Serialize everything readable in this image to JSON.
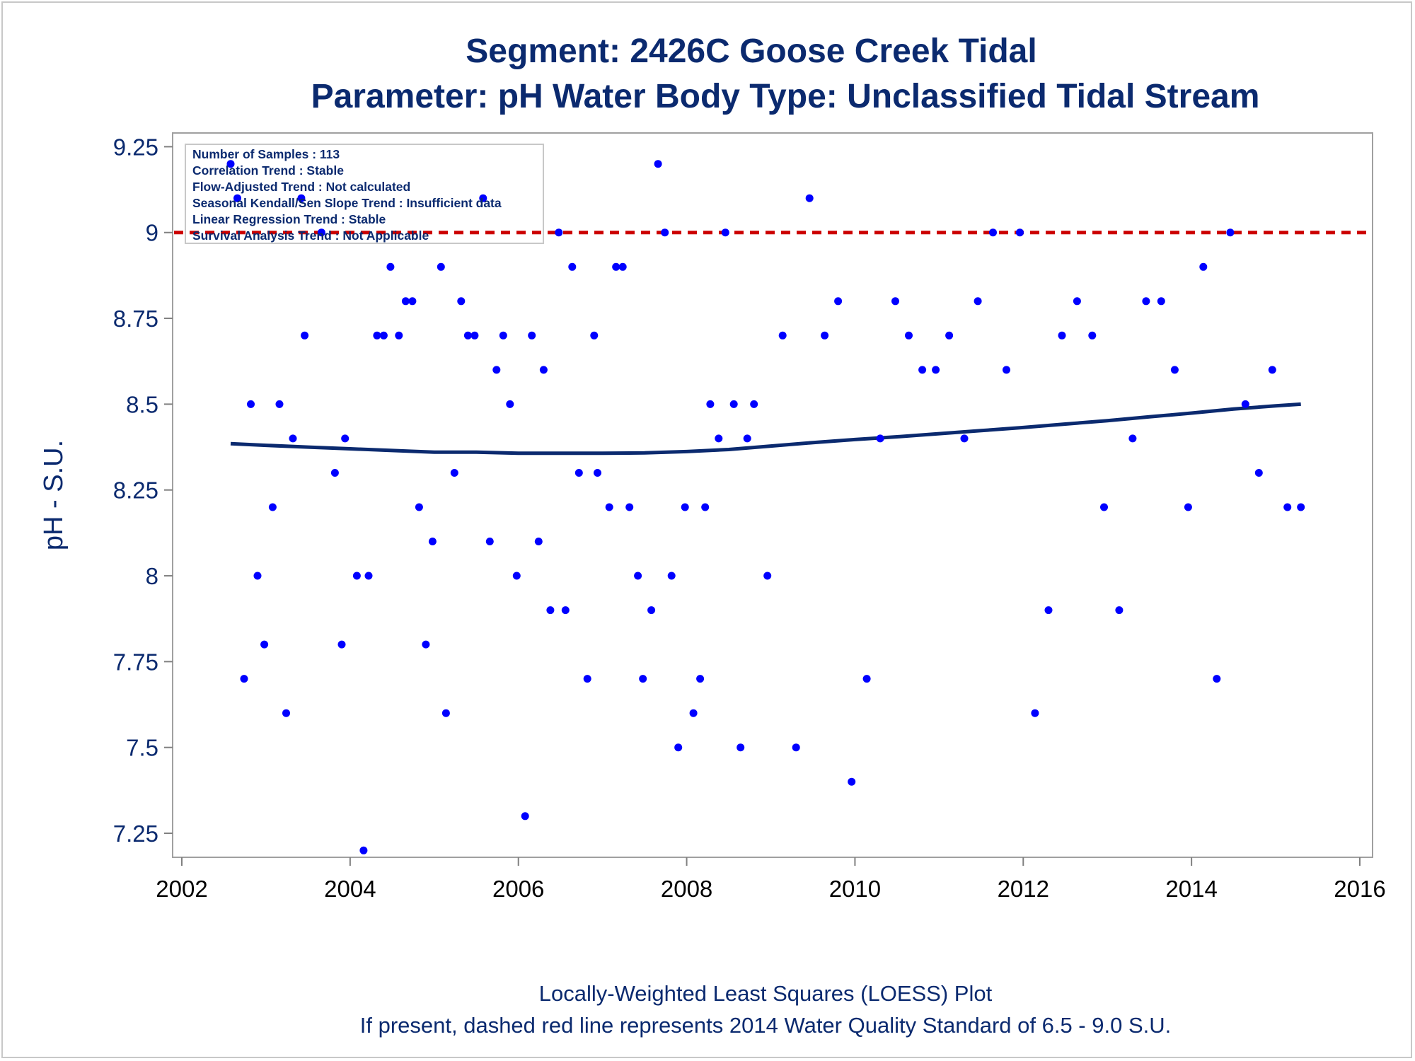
{
  "chart_data": {
    "type": "scatter",
    "title": "Segment: 2426C  Goose Creek Tidal",
    "subtitle": "Parameter: pH   Water Body Type: Unclassified Tidal Stream",
    "ylabel": "pH - S.U.",
    "xlabel": "",
    "xlim": [
      2002,
      2016
    ],
    "ylim": [
      7.18,
      9.29
    ],
    "xticks": [
      "2002",
      "2004",
      "2006",
      "2008",
      "2010",
      "2012",
      "2014",
      "2016"
    ],
    "yticks": [
      "7.25",
      "7.5",
      "7.75",
      "8",
      "8.25",
      "8.5",
      "8.75",
      "9",
      "9.25"
    ],
    "grid": false,
    "standard_line": 9.0,
    "footer": [
      "Locally-Weighted Least Squares (LOESS) Plot",
      "If present, dashed red line represents 2014 Water Quality Standard of 6.5 - 9.0 S.U."
    ],
    "stats_box": [
      "Number of Samples : 113",
      "Correlation Trend : Stable",
      "Flow-Adjusted Trend : Not calculated",
      "Seasonal Kendall/Sen Slope Trend : Insufficient data",
      "Linear Regression Trend : Stable",
      "Survival Analysis Trend : Not Applicable"
    ],
    "colors": {
      "points": "#0000ff",
      "loess": "#0b2a6f",
      "standard": "#cc0000",
      "text": "#0b2a6f"
    },
    "points": [
      [
        2002.58,
        9.2
      ],
      [
        2002.66,
        9.1
      ],
      [
        2002.74,
        7.7
      ],
      [
        2002.82,
        8.5
      ],
      [
        2002.9,
        8.0
      ],
      [
        2002.98,
        7.8
      ],
      [
        2003.08,
        8.2
      ],
      [
        2003.16,
        8.5
      ],
      [
        2003.24,
        7.6
      ],
      [
        2003.32,
        8.4
      ],
      [
        2003.42,
        9.1
      ],
      [
        2003.46,
        8.7
      ],
      [
        2003.66,
        9.0
      ],
      [
        2003.82,
        8.3
      ],
      [
        2003.9,
        7.8
      ],
      [
        2003.94,
        8.4
      ],
      [
        2004.08,
        8.0
      ],
      [
        2004.16,
        7.2
      ],
      [
        2004.22,
        8.0
      ],
      [
        2004.32,
        8.7
      ],
      [
        2004.4,
        8.7
      ],
      [
        2004.48,
        8.9
      ],
      [
        2004.58,
        8.7
      ],
      [
        2004.66,
        8.8
      ],
      [
        2004.74,
        8.8
      ],
      [
        2004.82,
        8.2
      ],
      [
        2004.9,
        7.8
      ],
      [
        2004.98,
        8.1
      ],
      [
        2005.08,
        8.9
      ],
      [
        2005.14,
        7.6
      ],
      [
        2005.24,
        8.3
      ],
      [
        2005.32,
        8.8
      ],
      [
        2005.4,
        8.7
      ],
      [
        2005.48,
        8.7
      ],
      [
        2005.58,
        9.1
      ],
      [
        2005.66,
        8.1
      ],
      [
        2005.74,
        8.6
      ],
      [
        2005.82,
        8.7
      ],
      [
        2005.9,
        8.5
      ],
      [
        2005.98,
        8.0
      ],
      [
        2006.08,
        7.3
      ],
      [
        2006.16,
        8.7
      ],
      [
        2006.24,
        8.1
      ],
      [
        2006.3,
        8.6
      ],
      [
        2006.38,
        7.9
      ],
      [
        2006.48,
        9.0
      ],
      [
        2006.56,
        7.9
      ],
      [
        2006.64,
        8.9
      ],
      [
        2006.72,
        8.3
      ],
      [
        2006.82,
        7.7
      ],
      [
        2006.9,
        8.7
      ],
      [
        2006.94,
        8.3
      ],
      [
        2007.08,
        8.2
      ],
      [
        2007.16,
        8.9
      ],
      [
        2007.24,
        8.9
      ],
      [
        2007.32,
        8.2
      ],
      [
        2007.42,
        8.0
      ],
      [
        2007.48,
        7.7
      ],
      [
        2007.58,
        7.9
      ],
      [
        2007.66,
        9.2
      ],
      [
        2007.74,
        9.0
      ],
      [
        2007.82,
        8.0
      ],
      [
        2007.9,
        7.5
      ],
      [
        2007.98,
        8.2
      ],
      [
        2008.08,
        7.6
      ],
      [
        2008.16,
        7.7
      ],
      [
        2008.22,
        8.2
      ],
      [
        2008.28,
        8.5
      ],
      [
        2008.38,
        8.4
      ],
      [
        2008.46,
        9.0
      ],
      [
        2008.56,
        8.5
      ],
      [
        2008.64,
        7.5
      ],
      [
        2008.72,
        8.4
      ],
      [
        2008.8,
        8.5
      ],
      [
        2008.96,
        8.0
      ],
      [
        2009.14,
        8.7
      ],
      [
        2009.3,
        7.5
      ],
      [
        2009.46,
        9.1
      ],
      [
        2009.64,
        8.7
      ],
      [
        2009.8,
        8.8
      ],
      [
        2009.96,
        7.4
      ],
      [
        2010.14,
        7.7
      ],
      [
        2010.3,
        8.4
      ],
      [
        2010.48,
        8.8
      ],
      [
        2010.64,
        8.7
      ],
      [
        2010.8,
        8.6
      ],
      [
        2010.96,
        8.6
      ],
      [
        2011.12,
        8.7
      ],
      [
        2011.3,
        8.4
      ],
      [
        2011.46,
        8.8
      ],
      [
        2011.64,
        9.0
      ],
      [
        2011.8,
        8.6
      ],
      [
        2011.96,
        9.0
      ],
      [
        2012.14,
        7.6
      ],
      [
        2012.3,
        7.9
      ],
      [
        2012.46,
        8.7
      ],
      [
        2012.64,
        8.8
      ],
      [
        2012.82,
        8.7
      ],
      [
        2012.96,
        8.2
      ],
      [
        2013.14,
        7.9
      ],
      [
        2013.3,
        8.4
      ],
      [
        2013.46,
        8.8
      ],
      [
        2013.64,
        8.8
      ],
      [
        2013.8,
        8.6
      ],
      [
        2013.96,
        8.2
      ],
      [
        2014.14,
        8.9
      ],
      [
        2014.3,
        7.7
      ],
      [
        2014.46,
        9.0
      ],
      [
        2014.64,
        8.5
      ],
      [
        2014.8,
        8.3
      ],
      [
        2014.96,
        8.6
      ],
      [
        2015.14,
        8.2
      ],
      [
        2015.3,
        8.2
      ]
    ],
    "loess": [
      [
        2002.58,
        8.385
      ],
      [
        2003.0,
        8.38
      ],
      [
        2003.5,
        8.375
      ],
      [
        2004.0,
        8.37
      ],
      [
        2004.5,
        8.365
      ],
      [
        2005.0,
        8.36
      ],
      [
        2005.5,
        8.36
      ],
      [
        2006.0,
        8.357
      ],
      [
        2006.5,
        8.357
      ],
      [
        2007.0,
        8.357
      ],
      [
        2007.5,
        8.358
      ],
      [
        2008.0,
        8.362
      ],
      [
        2008.5,
        8.368
      ],
      [
        2009.0,
        8.378
      ],
      [
        2009.5,
        8.388
      ],
      [
        2010.0,
        8.397
      ],
      [
        2010.5,
        8.405
      ],
      [
        2011.0,
        8.414
      ],
      [
        2011.5,
        8.423
      ],
      [
        2012.0,
        8.432
      ],
      [
        2012.5,
        8.442
      ],
      [
        2013.0,
        8.452
      ],
      [
        2013.5,
        8.463
      ],
      [
        2014.0,
        8.474
      ],
      [
        2014.5,
        8.486
      ],
      [
        2015.0,
        8.495
      ],
      [
        2015.3,
        8.5
      ]
    ]
  }
}
